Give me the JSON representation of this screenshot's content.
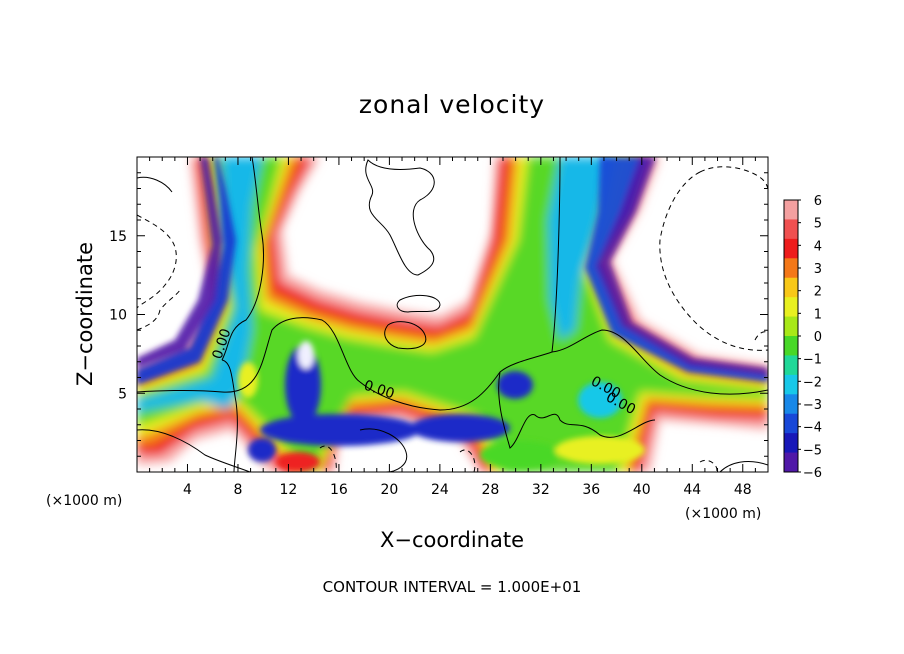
{
  "chart_data": {
    "type": "heatmap",
    "title": "zonal velocity",
    "xlabel": "X−coordinate",
    "ylabel": "Z−coordinate",
    "x_unit": "(×1000 m)",
    "y_unit": "(×1000 m)",
    "footer": "CONTOUR INTERVAL = 1.000E+01",
    "contour_label": "0.00",
    "contour_label_count": 4,
    "xlim": [
      0,
      50
    ],
    "ylim": [
      0,
      20
    ],
    "xticks": [
      4,
      8,
      12,
      16,
      20,
      24,
      28,
      32,
      36,
      40,
      44,
      48
    ],
    "yticks": [
      5,
      10,
      15
    ],
    "colorbar": {
      "levels": [
        6,
        5,
        4,
        3,
        2,
        1,
        0,
        -1,
        -2,
        -3,
        -4,
        -5,
        -6
      ],
      "tick_labels": [
        "6",
        "5",
        "4",
        "3",
        "2",
        "1",
        "0",
        "−1",
        "−2",
        "−3",
        "−4",
        "−5",
        "−6"
      ],
      "colors": [
        "#f4a0a0",
        "#f05050",
        "#ee1c1c",
        "#f47818",
        "#f8c818",
        "#e8f020",
        "#a8e818",
        "#48d828",
        "#20d898",
        "#18c8e8",
        "#1888e8",
        "#1848d8",
        "#1818b8",
        "#5018a8"
      ]
    },
    "grid": false,
    "legend": "colorbar-right"
  }
}
